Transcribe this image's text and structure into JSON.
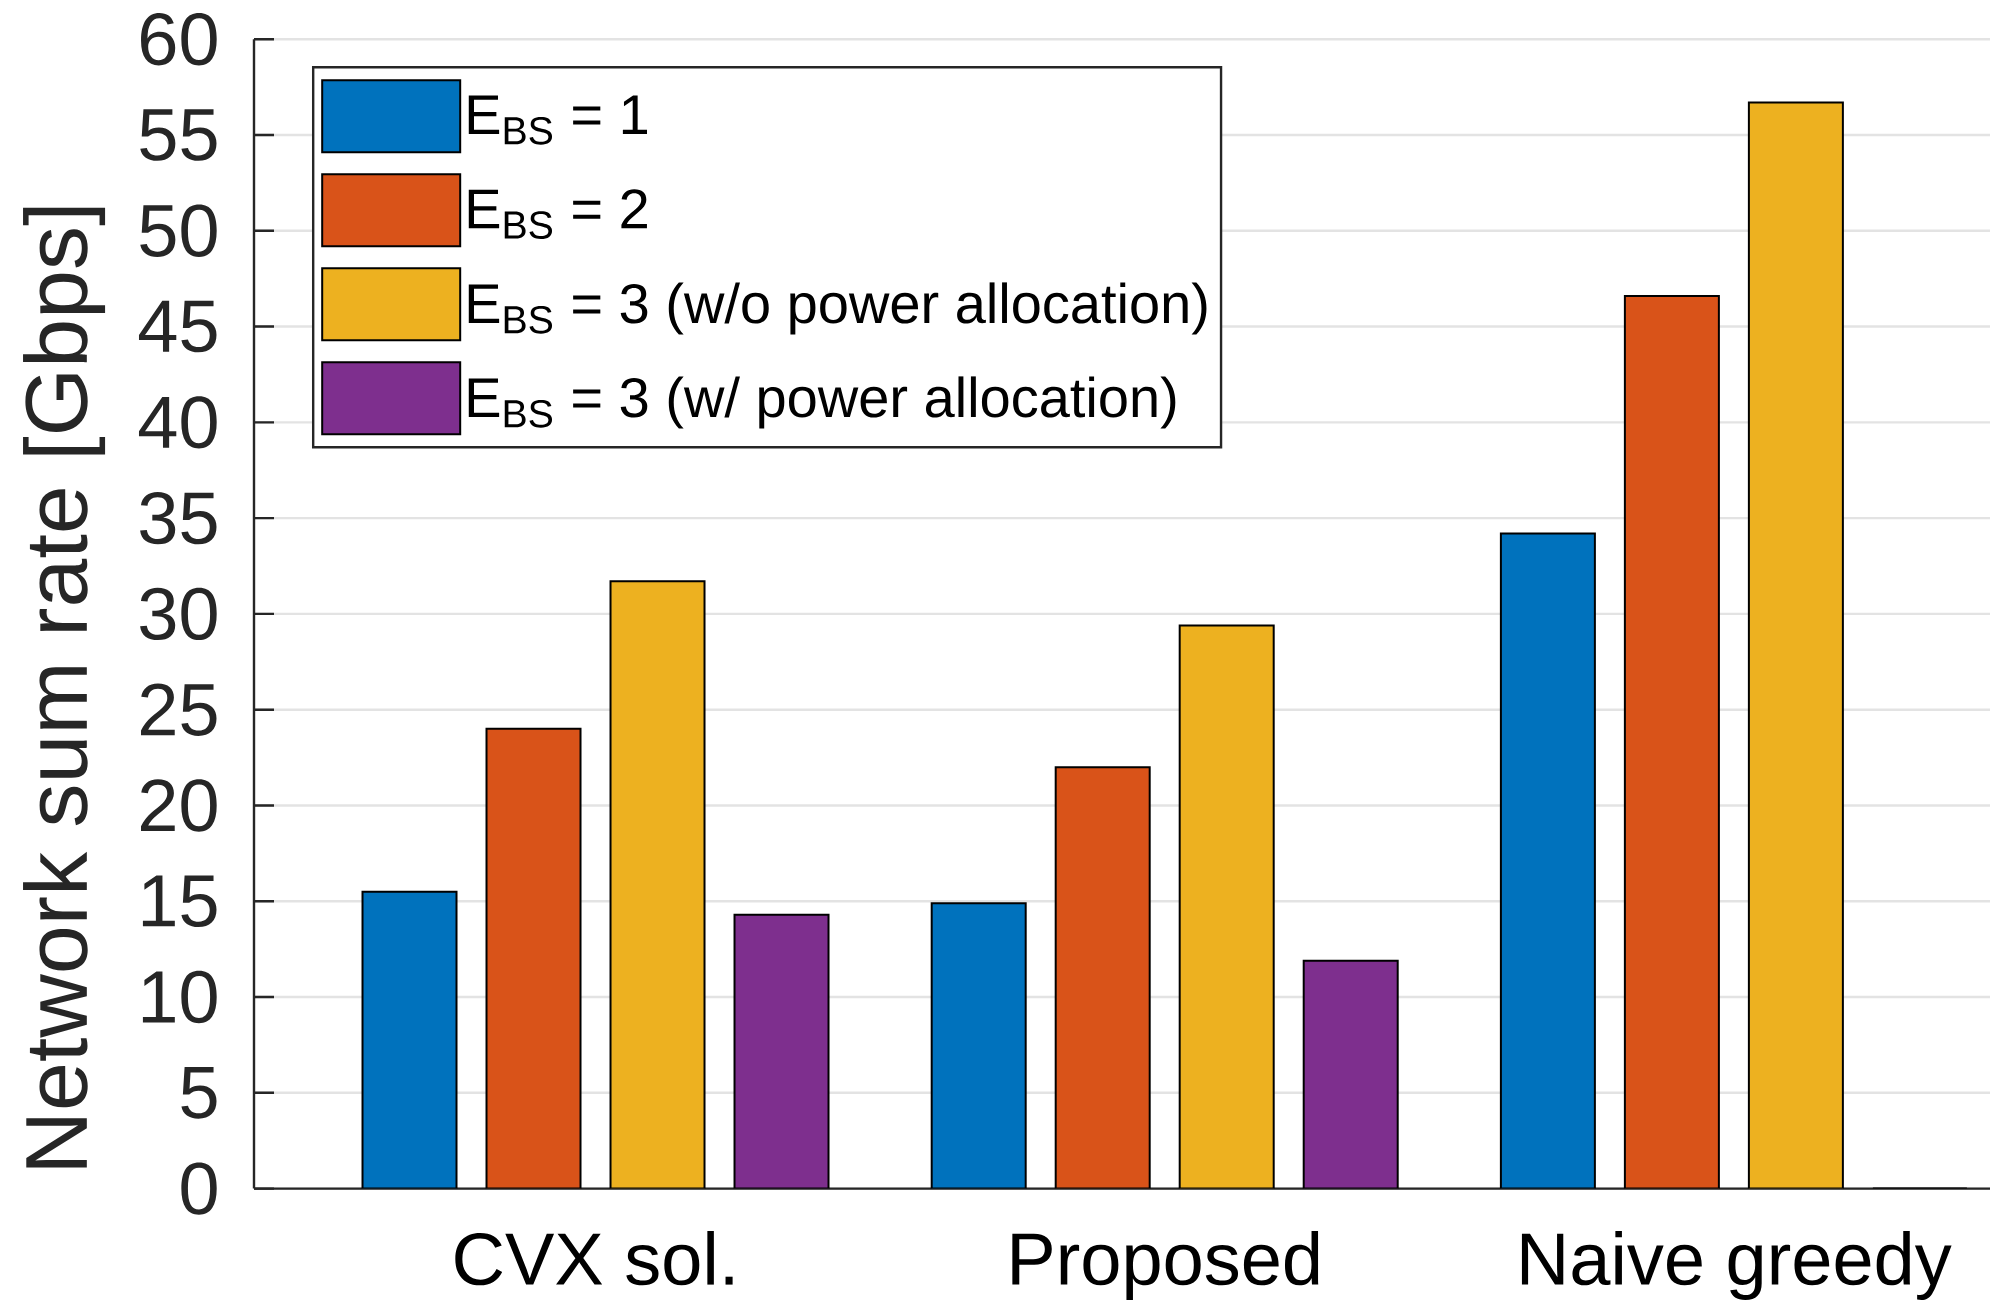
{
  "chart_data": {
    "type": "bar",
    "categories": [
      "CVX sol.",
      "Proposed",
      "Naive greedy"
    ],
    "series": [
      {
        "name": "E$_{BS}$ = 1",
        "color": "#0072bd",
        "values": [
          15.5,
          14.9,
          34.2
        ]
      },
      {
        "name": "E$_{BS}$ = 2",
        "color": "#d95319",
        "values": [
          24.0,
          22.0,
          46.6
        ]
      },
      {
        "name": "E$_{BS}$ = 3 (w/o power allocation)",
        "color": "#edb120",
        "values": [
          31.7,
          29.4,
          56.7
        ]
      },
      {
        "name": "E$_{BS}$ = 3 (w/ power allocation)",
        "color": "#7e2f8e",
        "values": [
          14.3,
          11.9,
          0
        ]
      }
    ],
    "ylabel": "Network sum rate [Gbps]",
    "ylim": [
      0,
      60
    ],
    "yticks": [
      0,
      5,
      10,
      15,
      20,
      25,
      30,
      35,
      40,
      45,
      50,
      55,
      60
    ],
    "grid": "y",
    "legend": "top left"
  }
}
